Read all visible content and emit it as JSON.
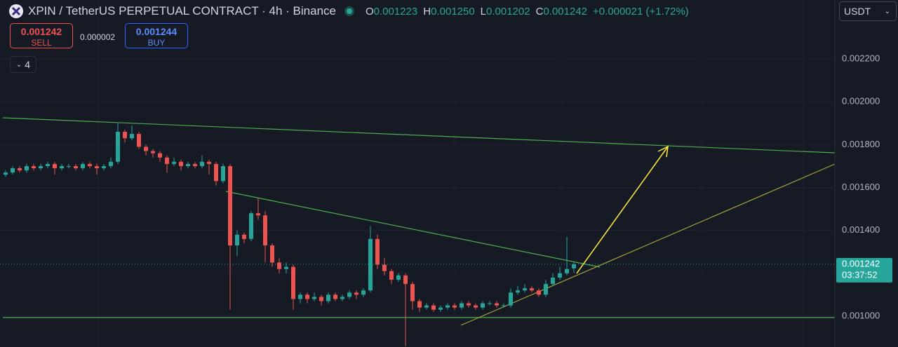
{
  "header": {
    "symbol": "XPIN / TetherUS PERPETUAL CONTRACT · 4h · Binance",
    "ohlc": [
      {
        "key": "O",
        "value": "0.001223"
      },
      {
        "key": "H",
        "value": "0.001250"
      },
      {
        "key": "L",
        "value": "0.001202"
      },
      {
        "key": "C",
        "value": "0.001242"
      }
    ],
    "change": "+0.000021 (+1.72%)"
  },
  "trade": {
    "sell_price": "0.001242",
    "sell_label": "SELL",
    "spread": "0.000002",
    "buy_price": "0.001244",
    "buy_label": "BUY"
  },
  "indicators": "4",
  "currency": "USDT",
  "chart_data": {
    "type": "candlestick",
    "open": [
      0.00166,
      0.00167,
      0.00169,
      0.00168,
      0.0017,
      0.00169,
      0.0017,
      0.00171,
      0.00169,
      0.0017,
      0.0017,
      0.00169,
      0.00171,
      0.0017,
      0.00169,
      0.0017,
      0.00172,
      0.00186,
      0.00183,
      0.00185,
      0.00179,
      0.00177,
      0.00176,
      0.00174,
      0.00171,
      0.00172,
      0.0017,
      0.00171,
      0.0017,
      0.00172,
      0.00171,
      0.00163,
      0.0017,
      0.00133,
      0.00138,
      0.00136,
      0.00148,
      0.00147,
      0.00133,
      0.00125,
      0.00122,
      0.00123,
      0.00108,
      0.0011,
      0.00108,
      0.00109,
      0.00107,
      0.0011,
      0.00108,
      0.00109,
      0.00111,
      0.0011,
      0.00112,
      0.00136,
      0.00124,
      0.00121,
      0.00117,
      0.00119,
      0.00115,
      0.00107,
      0.00104,
      0.00105,
      0.00103,
      0.00104,
      0.00105,
      0.00104,
      0.00106,
      0.00105,
      0.00104,
      0.00106,
      0.00106,
      0.00105,
      0.00105,
      0.00111,
      0.00112,
      0.00113,
      0.00112,
      0.0011,
      0.00115,
      0.00118,
      0.0012,
      0.001223
    ],
    "high": [
      0.00168,
      0.0017,
      0.0017,
      0.00171,
      0.00171,
      0.00171,
      0.00172,
      0.00172,
      0.00171,
      0.00171,
      0.00171,
      0.00172,
      0.00172,
      0.00171,
      0.00171,
      0.00174,
      0.0019,
      0.00187,
      0.00189,
      0.00186,
      0.0018,
      0.00178,
      0.00177,
      0.00175,
      0.00174,
      0.00173,
      0.00172,
      0.00172,
      0.00175,
      0.00173,
      0.00172,
      0.00171,
      0.00171,
      0.0014,
      0.00139,
      0.00149,
      0.00155,
      0.00149,
      0.00134,
      0.00127,
      0.00125,
      0.00124,
      0.00111,
      0.00111,
      0.00111,
      0.0011,
      0.00111,
      0.00111,
      0.0011,
      0.00112,
      0.00112,
      0.00113,
      0.00142,
      0.00138,
      0.00127,
      0.00122,
      0.0012,
      0.0012,
      0.00116,
      0.00108,
      0.00106,
      0.00106,
      0.00105,
      0.00106,
      0.00106,
      0.00107,
      0.00107,
      0.00106,
      0.00107,
      0.00107,
      0.00107,
      0.00106,
      0.00113,
      0.00114,
      0.00115,
      0.00114,
      0.00113,
      0.00117,
      0.0012,
      0.00123,
      0.00137,
      0.00125
    ],
    "low": [
      0.00165,
      0.00166,
      0.00167,
      0.00167,
      0.00168,
      0.00168,
      0.00169,
      0.00166,
      0.00168,
      0.00169,
      0.00168,
      0.00168,
      0.00169,
      0.00166,
      0.00168,
      0.00169,
      0.00171,
      0.00181,
      0.00182,
      0.00178,
      0.00175,
      0.00174,
      0.00172,
      0.00167,
      0.0017,
      0.00168,
      0.00169,
      0.00169,
      0.00169,
      0.00166,
      0.00161,
      0.00162,
      0.00103,
      0.00128,
      0.00134,
      0.00135,
      0.00145,
      0.00125,
      0.00123,
      0.0012,
      0.0012,
      0.00103,
      0.00106,
      0.00106,
      0.00107,
      0.00105,
      0.00106,
      0.00107,
      0.00107,
      0.00108,
      0.00108,
      0.00109,
      0.00111,
      0.00122,
      0.00119,
      0.00115,
      0.00116,
      0.00086,
      0.00103,
      0.00102,
      0.00103,
      0.00102,
      0.00102,
      0.00103,
      0.00103,
      0.00103,
      0.00104,
      0.00103,
      0.00103,
      0.00105,
      0.00104,
      0.00104,
      0.00104,
      0.0011,
      0.00111,
      0.00111,
      0.00109,
      0.00109,
      0.00114,
      0.00117,
      0.00119,
      0.001202
    ],
    "close": [
      0.00167,
      0.00169,
      0.00168,
      0.0017,
      0.00169,
      0.0017,
      0.00171,
      0.00169,
      0.0017,
      0.0017,
      0.00169,
      0.00171,
      0.0017,
      0.00169,
      0.0017,
      0.00172,
      0.00186,
      0.00183,
      0.00185,
      0.00179,
      0.00177,
      0.00176,
      0.00174,
      0.00171,
      0.00172,
      0.0017,
      0.00171,
      0.0017,
      0.00172,
      0.00171,
      0.00163,
      0.0017,
      0.00133,
      0.00138,
      0.00136,
      0.00148,
      0.00147,
      0.00133,
      0.00125,
      0.00122,
      0.00123,
      0.00108,
      0.0011,
      0.00108,
      0.00109,
      0.00107,
      0.0011,
      0.00108,
      0.00109,
      0.00111,
      0.0011,
      0.00112,
      0.00136,
      0.00124,
      0.00121,
      0.00117,
      0.00119,
      0.00115,
      0.00107,
      0.00104,
      0.00105,
      0.00103,
      0.00104,
      0.00105,
      0.00104,
      0.00106,
      0.00105,
      0.00104,
      0.00106,
      0.00106,
      0.00105,
      0.00105,
      0.00111,
      0.00112,
      0.00113,
      0.00112,
      0.0011,
      0.00115,
      0.00118,
      0.0012,
      0.00122,
      0.001242
    ],
    "up_color": "#26a69a",
    "down_color": "#ef5350",
    "ylim": [
      0.000856,
      0.002475
    ],
    "yticks": [
      {
        "value": 0.001,
        "label": "0.001000"
      },
      {
        "value": 0.0012,
        "label": "0.001200"
      },
      {
        "value": 0.0014,
        "label": "0.001400"
      },
      {
        "value": 0.0016,
        "label": "0.001600"
      },
      {
        "value": 0.0018,
        "label": "0.001800"
      },
      {
        "value": 0.002,
        "label": "0.002000"
      },
      {
        "value": 0.0022,
        "label": "0.002200"
      }
    ],
    "grid": true,
    "countdown": "03:37:52"
  }
}
